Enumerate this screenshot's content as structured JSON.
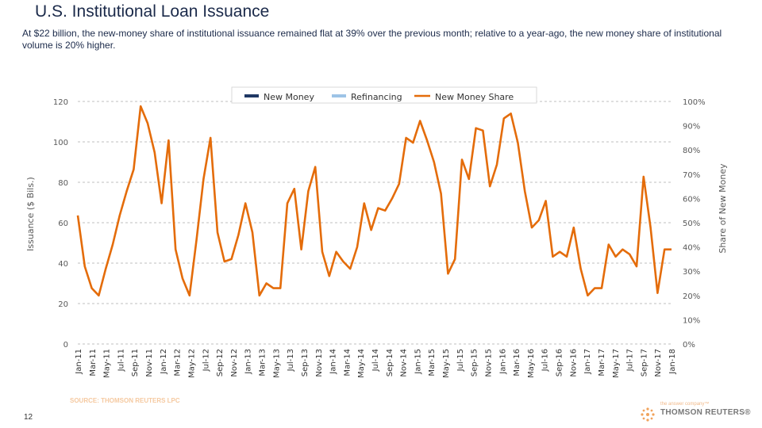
{
  "page": {
    "title": "U.S. Institutional Loan Issuance",
    "subtitle": "At $22 billion, the new-money share of institutional issuance remained flat at 39% over the previous month; relative to a year-ago, the new money share of institutional volume is 20% higher.",
    "source": "SOURCE: THOMSON REUTERS LPC",
    "page_number": "12",
    "brand_tag": "the answer company™",
    "brand": "THOMSON REUTERS®"
  },
  "chart_data": {
    "type": "line",
    "title": "",
    "xlabel": "",
    "ylabel": "Issuance ($ Bils.)",
    "y2label": "Share of New Money",
    "ylim": [
      0,
      120
    ],
    "y2lim": [
      0,
      100
    ],
    "yticks": [
      "0",
      "20",
      "40",
      "60",
      "80",
      "100",
      "120"
    ],
    "y2ticks": [
      "0%",
      "10%",
      "20%",
      "30%",
      "40%",
      "50%",
      "60%",
      "70%",
      "80%",
      "90%",
      "100%"
    ],
    "grid": true,
    "legend": [
      "New Money",
      "Refinancing",
      "New Money Share"
    ],
    "colors": {
      "new_money": "#1f3864",
      "refinancing": "#9dc3e6",
      "share": "#e46c0a",
      "grid": "#bfbfbf",
      "axis_text": "#595959"
    },
    "tick_labels": [
      "Jan-11",
      "Mar-11",
      "May-11",
      "Jul-11",
      "Sep-11",
      "Nov-11",
      "Jan-12",
      "Mar-12",
      "May-12",
      "Jul-12",
      "Sep-12",
      "Nov-12",
      "Jan-13",
      "Mar-13",
      "May-13",
      "Jul-13",
      "Sep-13",
      "Nov-13",
      "Jan-14",
      "Mar-14",
      "May-14",
      "Jul-14",
      "Sep-14",
      "Nov-14",
      "Jan-15",
      "Mar-15",
      "May-15",
      "Jul-15",
      "Sep-15",
      "Nov-15",
      "Jan-16",
      "Mar-16",
      "May-16",
      "Jul-16",
      "Sep-16",
      "Nov-16",
      "Jan-17",
      "Mar-17",
      "May-17",
      "Jul-17",
      "Sep-17",
      "Nov-17",
      "Jan-18"
    ],
    "series": [
      {
        "name": "New Money Share",
        "values": [
          53,
          32,
          23,
          20,
          31,
          41,
          53,
          63,
          72,
          98,
          91,
          79,
          58,
          84,
          39,
          27,
          20,
          43,
          68,
          85,
          46,
          34,
          35,
          45,
          58,
          46,
          20,
          25,
          23,
          23,
          58,
          64,
          39,
          63,
          73,
          38,
          28,
          38,
          34,
          31,
          40,
          58,
          47,
          56,
          55,
          60,
          66,
          85,
          83,
          92,
          84,
          75,
          62,
          29,
          35,
          76,
          68,
          89,
          88,
          65,
          74,
          93,
          95,
          83,
          63,
          48,
          51,
          59,
          36,
          38,
          36,
          48,
          31,
          20,
          23,
          23,
          41,
          36,
          39,
          37,
          32,
          69,
          48,
          21,
          39,
          39
        ]
      }
    ]
  }
}
